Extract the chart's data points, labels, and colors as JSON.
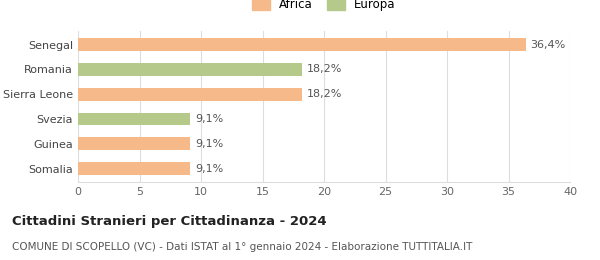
{
  "categories": [
    "Senegal",
    "Romania",
    "Sierra Leone",
    "Svezia",
    "Guinea",
    "Somalia"
  ],
  "values": [
    36.4,
    18.2,
    18.2,
    9.1,
    9.1,
    9.1
  ],
  "bar_colors": [
    "#F5B98A",
    "#B5C98A",
    "#F5B98A",
    "#B5C98A",
    "#F5B98A",
    "#F5B98A"
  ],
  "value_labels": [
    "36,4%",
    "18,2%",
    "18,2%",
    "9,1%",
    "9,1%",
    "9,1%"
  ],
  "xlim": [
    0,
    40
  ],
  "xticks": [
    0,
    5,
    10,
    15,
    20,
    25,
    30,
    35,
    40
  ],
  "legend_labels": [
    "Africa",
    "Europa"
  ],
  "legend_colors": [
    "#F5B98A",
    "#B5C98A"
  ],
  "title": "Cittadini Stranieri per Cittadinanza - 2024",
  "subtitle": "COMUNE DI SCOPELLO (VC) - Dati ISTAT al 1° gennaio 2024 - Elaborazione TUTTITALIA.IT",
  "title_fontsize": 9.5,
  "subtitle_fontsize": 7.5,
  "bar_height": 0.52,
  "background_color": "#ffffff",
  "grid_color": "#dddddd",
  "label_fontsize": 8,
  "tick_fontsize": 8
}
